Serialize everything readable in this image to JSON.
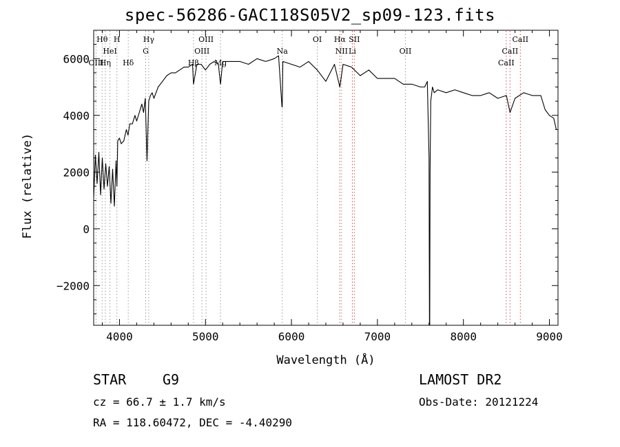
{
  "chart_data": {
    "type": "line",
    "title": "spec-56286-GAC118S05V2_sp09-123.fits",
    "xlabel": "Wavelength (Å)",
    "ylabel": "Flux (relative)",
    "xlim": [
      3700,
      9100
    ],
    "ylim": [
      -3400,
      7000
    ],
    "xticks": [
      4000,
      5000,
      6000,
      7000,
      8000,
      9000
    ],
    "yticks": [
      -2000,
      0,
      2000,
      4000,
      6000
    ],
    "grid": false,
    "series_color": "#000000",
    "series": [
      {
        "x": [
          3700,
          3720,
          3740,
          3760,
          3780,
          3800,
          3820,
          3840,
          3860,
          3880,
          3900,
          3920,
          3940,
          3960,
          3970,
          3980,
          4000,
          4020,
          4050,
          4080,
          4100,
          4120,
          4150,
          4180,
          4200,
          4230,
          4260,
          4280,
          4300,
          4320,
          4340,
          4360,
          4380,
          4400,
          4450,
          4500,
          4550,
          4600,
          4650,
          4700,
          4750,
          4800,
          4850,
          4861,
          4900,
          4950,
          5000,
          5050,
          5100,
          5150,
          5175,
          5200,
          5300,
          5400,
          5500,
          5600,
          5700,
          5800,
          5850,
          5890,
          5893,
          5900,
          6000,
          6100,
          6200,
          6300,
          6400,
          6500,
          6563,
          6600,
          6700,
          6800,
          6900,
          7000,
          7100,
          7200,
          7300,
          7400,
          7500,
          7550,
          7580,
          7600,
          7605,
          7608,
          7612,
          7620,
          7640,
          7660,
          7700,
          7800,
          7900,
          8000,
          8100,
          8200,
          8300,
          8400,
          8500,
          8542,
          8600,
          8700,
          8800,
          8900,
          8950,
          9000,
          9050,
          9080
        ],
        "y": [
          1100,
          2600,
          1600,
          2700,
          1200,
          2500,
          1400,
          2300,
          1500,
          2200,
          900,
          2100,
          800,
          2400,
          1500,
          3100,
          3200,
          3000,
          3100,
          3500,
          3300,
          3700,
          3700,
          4000,
          3800,
          4100,
          4400,
          4100,
          4600,
          2400,
          4500,
          4700,
          4800,
          4600,
          5000,
          5200,
          5400,
          5500,
          5500,
          5600,
          5700,
          5700,
          5800,
          5100,
          5800,
          5800,
          5600,
          5800,
          5900,
          5800,
          5100,
          5900,
          5900,
          5900,
          5800,
          6000,
          5900,
          6000,
          6100,
          4300,
          4300,
          5900,
          5800,
          5700,
          5900,
          5600,
          5200,
          5800,
          5000,
          5800,
          5700,
          5400,
          5600,
          5300,
          5300,
          5300,
          5100,
          5100,
          5000,
          5000,
          5200,
          2500,
          -3400,
          -3400,
          2000,
          4500,
          5000,
          4800,
          4900,
          4800,
          4900,
          4800,
          4700,
          4700,
          4800,
          4600,
          4700,
          4100,
          4600,
          4800,
          4700,
          4700,
          4200,
          4000,
          3900,
          3500
        ]
      }
    ],
    "spectral_lines": [
      {
        "label": "Hθ",
        "wavelength": 3798,
        "row": 1
      },
      {
        "label": "H",
        "wavelength": 3970,
        "row": 1
      },
      {
        "label": "HeI",
        "wavelength": 3889,
        "row": 2
      },
      {
        "label": "OIII",
        "wavelength": 3727,
        "row": 3
      },
      {
        "label": "Hη",
        "wavelength": 3835,
        "row": 3
      },
      {
        "label": "Hδ",
        "wavelength": 4102,
        "row": 3
      },
      {
        "label": "Hγ",
        "wavelength": 4340,
        "row": 1
      },
      {
        "label": "G",
        "wavelength": 4305,
        "row": 2
      },
      {
        "label": "OIII",
        "wavelength": 5007,
        "row": 1
      },
      {
        "label": "OIII",
        "wavelength": 4959,
        "row": 2
      },
      {
        "label": "Hβ",
        "wavelength": 4861,
        "row": 3
      },
      {
        "label": "Mg",
        "wavelength": 5175,
        "row": 3
      },
      {
        "label": "Na",
        "wavelength": 5893,
        "row": 2
      },
      {
        "label": "OI",
        "wavelength": 6300,
        "row": 1
      },
      {
        "label": "Hα",
        "wavelength": 6563,
        "row": 1
      },
      {
        "label": "SII",
        "wavelength": 6731,
        "row": 1
      },
      {
        "label": "NII",
        "wavelength": 6583,
        "row": 2
      },
      {
        "label": "Li",
        "wavelength": 6708,
        "row": 2
      },
      {
        "label": "OII",
        "wavelength": 7325,
        "row": 2
      },
      {
        "label": "CaII",
        "wavelength": 8662,
        "row": 1
      },
      {
        "label": "CaII",
        "wavelength": 8542,
        "row": 2
      },
      {
        "label": "CaII",
        "wavelength": 8498,
        "row": 3
      }
    ]
  },
  "footer": {
    "obj_class": "STAR",
    "obj_subclass": "G9",
    "survey": "LAMOST DR2",
    "cz": "cz = 66.7 ± 1.7 km/s",
    "obs_date": "Obs-Date: 20121224",
    "radec": "RA = 118.60472, DEC =  -4.40290"
  }
}
